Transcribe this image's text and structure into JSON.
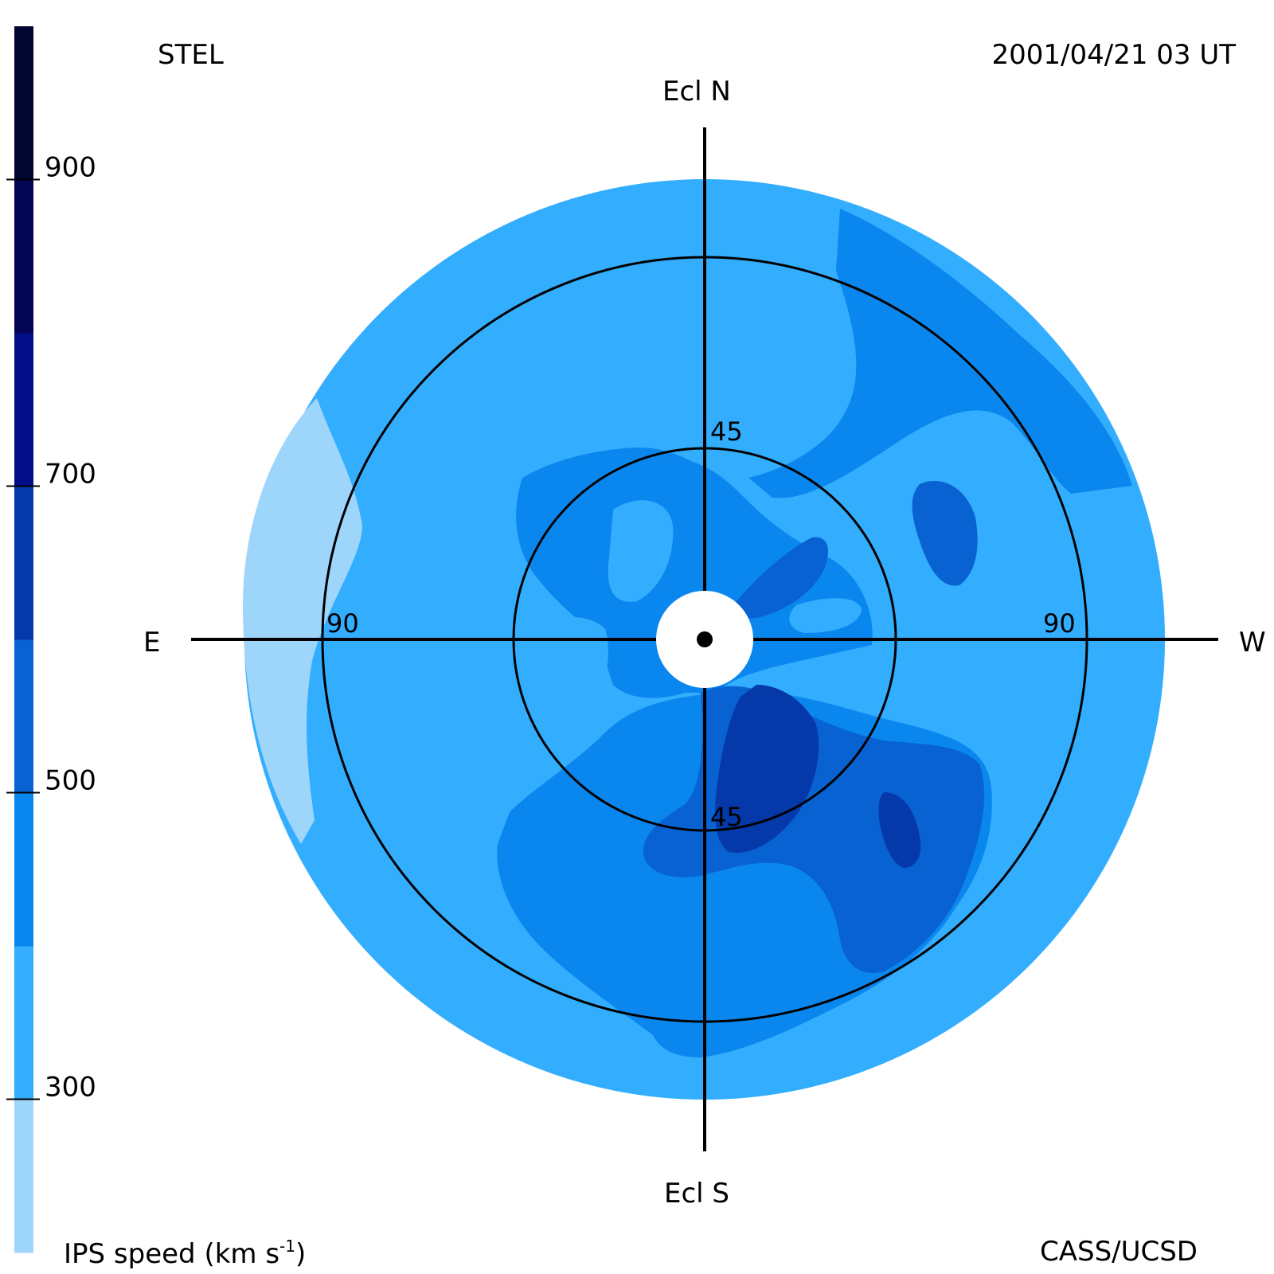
{
  "header": {
    "source": "STEL",
    "timestamp": "2001/04/21 03 UT"
  },
  "footer": {
    "colorbar_label_prefix": "IPS speed (km s",
    "colorbar_label_exp": "-1",
    "colorbar_label_suffix": ")",
    "credit": "CASS/UCSD"
  },
  "chart_data": {
    "type": "heatmap",
    "projection": "polar sky map (fisheye)",
    "directions": {
      "north": "Ecl N",
      "south": "Ecl S",
      "east": "E",
      "west": "W"
    },
    "ring_elongations_deg": [
      45,
      90
    ],
    "ring_labels": {
      "inner_top": "45",
      "inner_bottom": "45",
      "outer_left": "90",
      "outer_right": "90"
    },
    "colorbar": {
      "label": "IPS speed (km s-1)",
      "range": [
        200,
        1000
      ],
      "ticks": [
        300,
        500,
        700,
        900
      ],
      "ticks_text": [
        "300",
        "500",
        "700",
        "900"
      ],
      "band_step": 100,
      "bands": [
        {
          "from": 200,
          "to": 300,
          "color": "#9dd5fb"
        },
        {
          "from": 300,
          "to": 400,
          "color": "#33adfd"
        },
        {
          "from": 400,
          "to": 500,
          "color": "#0a87ef"
        },
        {
          "from": 500,
          "to": 600,
          "color": "#0862d2"
        },
        {
          "from": 600,
          "to": 700,
          "color": "#0538a8"
        },
        {
          "from": 700,
          "to": 800,
          "color": "#020e87"
        },
        {
          "from": 800,
          "to": 900,
          "color": "#030553"
        },
        {
          "from": 900,
          "to": 1000,
          "color": "#010630"
        }
      ]
    },
    "regions": [
      {
        "speed_band": "200-300",
        "location": "east edge, outer ring"
      },
      {
        "speed_band": "300-400",
        "location": "most of the map (background)"
      },
      {
        "speed_band": "400-500",
        "location": "north-west sector, centre and south"
      },
      {
        "speed_band": "500-600",
        "location": "patches west and south-west of centre"
      },
      {
        "speed_band": "600-700",
        "location": "south-west of centre near 45 deg"
      }
    ]
  }
}
